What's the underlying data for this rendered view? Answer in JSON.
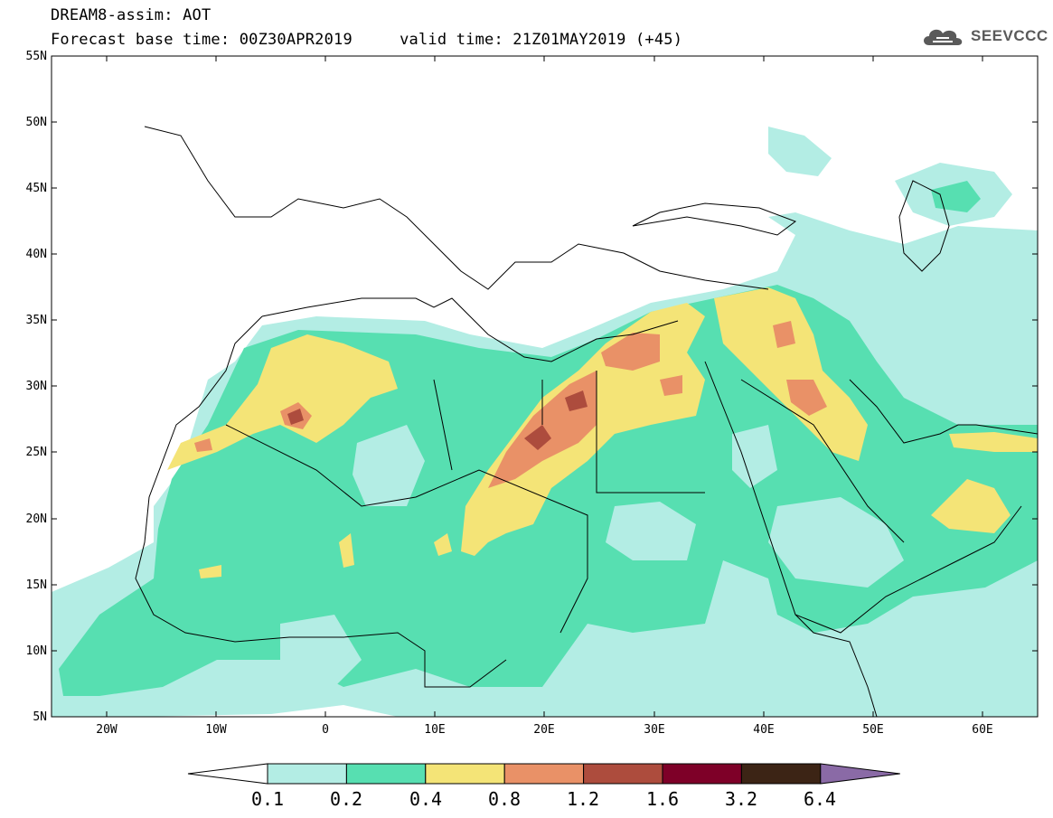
{
  "header": {
    "title": "DREAM8-assim: AOT",
    "subtitle": "Forecast base time: 00Z30APR2019     valid time: 21Z01MAY2019 (+45)"
  },
  "logo": {
    "text": "SEEVCCC",
    "icon": "cloud-icon"
  },
  "map": {
    "lon_range": [
      -25,
      65
    ],
    "lat_range": [
      5,
      55
    ],
    "lat_labels": [
      "5N",
      "10N",
      "15N",
      "20N",
      "25N",
      "30N",
      "35N",
      "40N",
      "45N",
      "50N",
      "55N"
    ],
    "lon_labels": [
      "20W",
      "10W",
      "0",
      "10E",
      "20E",
      "30E",
      "40E",
      "50E",
      "60E"
    ]
  },
  "colorbar": {
    "levels": [
      "0.1",
      "0.2",
      "0.4",
      "0.8",
      "1.2",
      "1.6",
      "3.2",
      "6.4"
    ],
    "colors": [
      "#ffffff",
      "#b3ede4",
      "#57dfb1",
      "#f4e477",
      "#e99167",
      "#ad4c3d",
      "#7e0028",
      "#3c2415",
      "#8a6aa6"
    ]
  }
}
